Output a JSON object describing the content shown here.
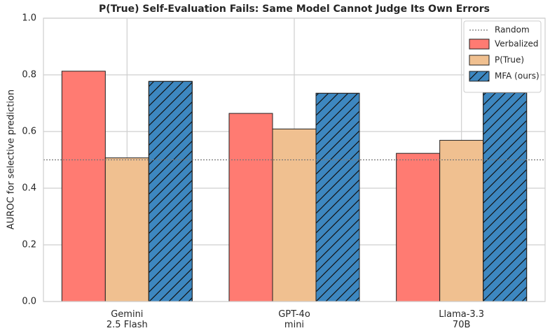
{
  "chart_data": {
    "type": "bar",
    "title": "P(True) Self-Evaluation Fails: Same Model Cannot Judge Its Own Errors",
    "y_label": "AUROC for selective prediction",
    "categories": [
      [
        "Gemini",
        "2.5 Flash"
      ],
      [
        "GPT-4o",
        "mini"
      ],
      [
        "Llama-3.3",
        "70B"
      ]
    ],
    "series": [
      {
        "name": "Verbalized",
        "color": "#ff7b72",
        "values": [
          0.813,
          0.664,
          0.523
        ]
      },
      {
        "name": "P(True)",
        "color": "#f0c090",
        "values": [
          0.507,
          0.609,
          0.569
        ]
      },
      {
        "name": "MFA (ours)",
        "color": "#3d87c0",
        "hatch": true,
        "values": [
          0.777,
          0.735,
          0.737
        ]
      }
    ],
    "reference": {
      "name": "Random",
      "value": 0.5
    },
    "ylim": [
      0,
      1
    ],
    "yticks": [
      {
        "value": 0,
        "label": "0.0"
      },
      0.2,
      0.4,
      0.6,
      0.8,
      {
        "value": 1,
        "label": "1.0"
      }
    ],
    "grid": true,
    "legend": "upper right"
  }
}
